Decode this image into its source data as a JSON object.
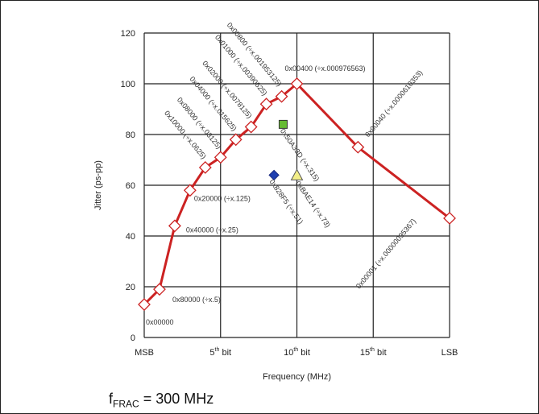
{
  "chart_data": {
    "type": "line",
    "xlabel": "Frequency (MHz)",
    "ylabel": "Jitter (ps-pp)",
    "ylim": [
      0,
      120
    ],
    "yticks": [
      0,
      20,
      40,
      60,
      80,
      100,
      120
    ],
    "xlim": [
      0,
      20
    ],
    "xticks": [
      {
        "x": 0,
        "label": "MSB",
        "sup": ""
      },
      {
        "x": 5,
        "label": "5",
        "sup": "th",
        "suffix": " bit"
      },
      {
        "x": 10,
        "label": "10",
        "sup": "th",
        "suffix": " bit"
      },
      {
        "x": 15,
        "label": "15",
        "sup": "th",
        "suffix": " bit"
      },
      {
        "x": 20,
        "label": "LSB",
        "sup": ""
      }
    ],
    "grid": true,
    "line_color": "#cc2222",
    "series": [
      {
        "points": [
          {
            "x": 0,
            "y": 13,
            "label": "0x00000"
          },
          {
            "x": 1,
            "y": 19,
            "label": "0x80000 (÷x.5)"
          },
          {
            "x": 2,
            "y": 44,
            "label": "0x40000 (÷x.25)"
          },
          {
            "x": 3,
            "y": 58,
            "label": "0x20000 (÷x.125)"
          },
          {
            "x": 4,
            "y": 67,
            "label": "0x10000 (÷x.0625)"
          },
          {
            "x": 5,
            "y": 71,
            "label": "0x08000 (÷x.03125)"
          },
          {
            "x": 6,
            "y": 78,
            "label": "0x04000 (÷x.015625)"
          },
          {
            "x": 7,
            "y": 83,
            "label": "0x02000 (÷x.0078125)"
          },
          {
            "x": 8,
            "y": 92,
            "label": "0x01000 (÷x.00390625)"
          },
          {
            "x": 9,
            "y": 95,
            "label": "0x00800 (÷x.001953125)"
          },
          {
            "x": 10,
            "y": 100,
            "label": "0x00400 (÷x.000976563)"
          },
          {
            "x": 14,
            "y": 75,
            "label": "0x00040 (÷x.0000610353)"
          },
          {
            "x": 20,
            "y": 47,
            "label": "0x00001 (÷x.00000095367)"
          }
        ]
      }
    ],
    "extra_points": [
      {
        "x": 8.5,
        "y": 64,
        "label": "0x828F5 (÷x.51)",
        "marker": "diamond",
        "color": "#1f3fb0"
      },
      {
        "x": 9.1,
        "y": 84,
        "label": "0x50A33D (÷x.315)",
        "marker": "square",
        "color": "#66bb33"
      },
      {
        "x": 10,
        "y": 64,
        "label": "0xBAE14 (÷x.73)",
        "marker": "triangle",
        "color": "#f2ee88"
      }
    ]
  },
  "footer": {
    "f": "f",
    "sub": "FRAC",
    "text": " = 300 MHz"
  }
}
